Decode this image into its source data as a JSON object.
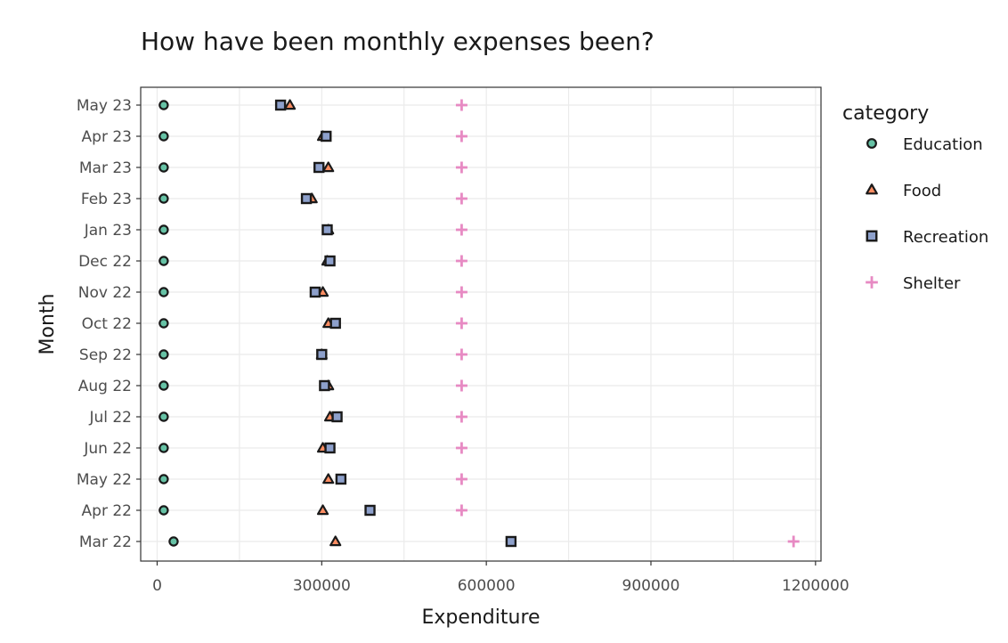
{
  "chart_data": {
    "type": "scatter",
    "title": "How have been monthly expenses been?",
    "xlabel": "Expenditure",
    "ylabel": "Month",
    "xlim": [
      -30000,
      1210000
    ],
    "x_ticks": [
      0,
      300000,
      600000,
      900000,
      1200000
    ],
    "x_tick_labels": [
      "0",
      "300000",
      "600000",
      "900000",
      "1200000"
    ],
    "categories": [
      "Mar 22",
      "Apr 22",
      "May 22",
      "Jun 22",
      "Jul 22",
      "Aug 22",
      "Sep 22",
      "Oct 22",
      "Nov 22",
      "Dec 22",
      "Jan 23",
      "Feb 23",
      "Mar 23",
      "Apr 23",
      "May 23"
    ],
    "grid": true,
    "legend_position": "right",
    "legend_title": "category",
    "series": [
      {
        "name": "Education",
        "shape": "circle",
        "color": "#66c2a5",
        "values": [
          30000,
          12000,
          12000,
          12000,
          12000,
          12000,
          12000,
          12000,
          12000,
          12000,
          12000,
          12000,
          12000,
          12000,
          12000
        ]
      },
      {
        "name": "Food",
        "shape": "triangle",
        "color": "#fc8d62",
        "values": [
          325000,
          302000,
          312000,
          302000,
          315000,
          312000,
          300000,
          312000,
          302000,
          310000,
          312000,
          282000,
          312000,
          302000,
          242000
        ]
      },
      {
        "name": "Recreation",
        "shape": "square",
        "color": "#8da0cb",
        "values": [
          645000,
          388000,
          335000,
          315000,
          328000,
          305000,
          300000,
          325000,
          288000,
          315000,
          310000,
          272000,
          295000,
          308000,
          225000
        ]
      },
      {
        "name": "Shelter",
        "shape": "plus",
        "color": "#e78ac3",
        "values": [
          1160000,
          555000,
          555000,
          555000,
          555000,
          555000,
          555000,
          555000,
          555000,
          555000,
          555000,
          555000,
          555000,
          555000,
          555000
        ]
      }
    ]
  }
}
